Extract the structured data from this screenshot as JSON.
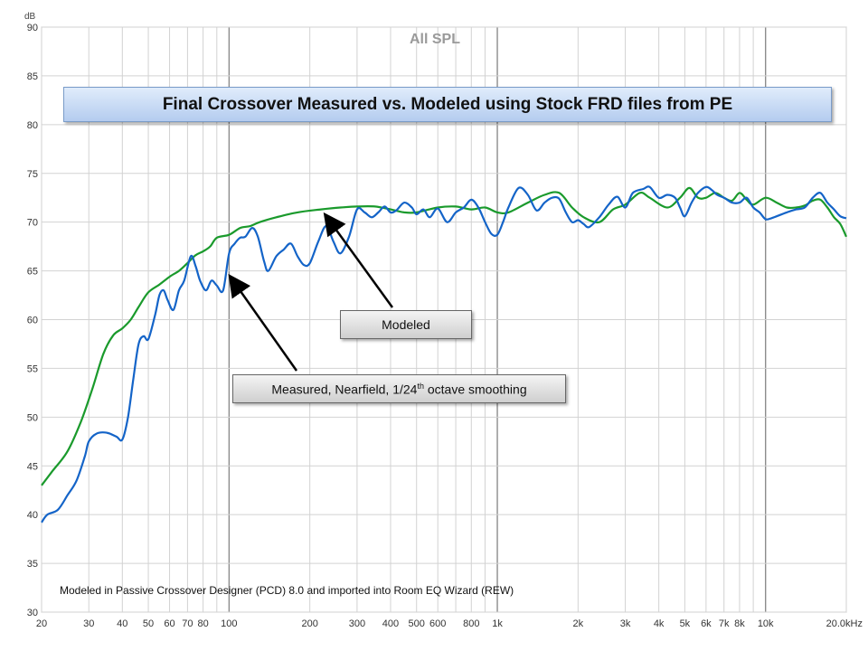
{
  "chart_data": {
    "type": "line",
    "title": "Final Crossover Measured vs. Modeled using Stock FRD files from PE",
    "watermark_title": "All SPL",
    "ylabel": "dB",
    "xscale": "log",
    "xlim": [
      20,
      20000
    ],
    "ylim": [
      30,
      90
    ],
    "grid": true,
    "y_ticks": [
      30,
      35,
      40,
      45,
      50,
      55,
      60,
      65,
      70,
      75,
      80,
      85,
      90
    ],
    "x_ticks": [
      {
        "value": 20,
        "label": "20"
      },
      {
        "value": 30,
        "label": "30"
      },
      {
        "value": 40,
        "label": "40"
      },
      {
        "value": 50,
        "label": "50"
      },
      {
        "value": 60,
        "label": "60"
      },
      {
        "value": 70,
        "label": "70"
      },
      {
        "value": 80,
        "label": "80"
      },
      {
        "value": 100,
        "label": "100"
      },
      {
        "value": 200,
        "label": "200"
      },
      {
        "value": 300,
        "label": "300"
      },
      {
        "value": 400,
        "label": "400"
      },
      {
        "value": 500,
        "label": "500"
      },
      {
        "value": 600,
        "label": "600"
      },
      {
        "value": 800,
        "label": "800"
      },
      {
        "value": 1000,
        "label": "1k"
      },
      {
        "value": 2000,
        "label": "2k"
      },
      {
        "value": 3000,
        "label": "3k"
      },
      {
        "value": 4000,
        "label": "4k"
      },
      {
        "value": 5000,
        "label": "5k"
      },
      {
        "value": 6000,
        "label": "6k"
      },
      {
        "value": 7000,
        "label": "7k"
      },
      {
        "value": 8000,
        "label": "8k"
      },
      {
        "value": 10000,
        "label": "10k"
      },
      {
        "value": 20000,
        "label": "20.0kHz"
      }
    ],
    "series": [
      {
        "color": "#1a9a2c",
        "points": [
          [
            20,
            43
          ],
          [
            22,
            44.5
          ],
          [
            25,
            46.5
          ],
          [
            28,
            49.5
          ],
          [
            31,
            53
          ],
          [
            34,
            56.5
          ],
          [
            37,
            58.4
          ],
          [
            40,
            59.1
          ],
          [
            43,
            60
          ],
          [
            46,
            61.3
          ],
          [
            50,
            62.8
          ],
          [
            55,
            63.6
          ],
          [
            60,
            64.4
          ],
          [
            65,
            65
          ],
          [
            70,
            65.8
          ],
          [
            75,
            66.6
          ],
          [
            80,
            67
          ],
          [
            85,
            67.5
          ],
          [
            90,
            68.4
          ],
          [
            100,
            68.7
          ],
          [
            110,
            69.4
          ],
          [
            120,
            69.6
          ],
          [
            130,
            70
          ],
          [
            150,
            70.5
          ],
          [
            180,
            71
          ],
          [
            220,
            71.3
          ],
          [
            260,
            71.5
          ],
          [
            300,
            71.6
          ],
          [
            350,
            71.6
          ],
          [
            400,
            71.3
          ],
          [
            450,
            71
          ],
          [
            500,
            71
          ],
          [
            600,
            71.5
          ],
          [
            700,
            71.6
          ],
          [
            800,
            71.3
          ],
          [
            900,
            71.5
          ],
          [
            1000,
            71
          ],
          [
            1100,
            71
          ],
          [
            1300,
            72
          ],
          [
            1500,
            72.8
          ],
          [
            1700,
            73
          ],
          [
            1900,
            71.5
          ],
          [
            2100,
            70.5
          ],
          [
            2400,
            70
          ],
          [
            2700,
            71.3
          ],
          [
            3000,
            71.8
          ],
          [
            3400,
            73
          ],
          [
            3700,
            72.5
          ],
          [
            4300,
            71.5
          ],
          [
            4800,
            72.5
          ],
          [
            5200,
            73.5
          ],
          [
            5600,
            72.5
          ],
          [
            6000,
            72.5
          ],
          [
            6500,
            73
          ],
          [
            7000,
            72.5
          ],
          [
            7500,
            72.2
          ],
          [
            8000,
            73
          ],
          [
            8500,
            72.3
          ],
          [
            9000,
            71.8
          ],
          [
            10000,
            72.5
          ],
          [
            11000,
            72
          ],
          [
            12000,
            71.5
          ],
          [
            13000,
            71.5
          ],
          [
            14000,
            71.7
          ],
          [
            15000,
            72.2
          ],
          [
            16000,
            72.3
          ],
          [
            17000,
            71.5
          ],
          [
            18000,
            70.5
          ],
          [
            19000,
            69.8
          ],
          [
            20000,
            68.5
          ]
        ]
      },
      {
        "color": "#1464c8",
        "points": [
          [
            20,
            39.2
          ],
          [
            21,
            40
          ],
          [
            23,
            40.5
          ],
          [
            25,
            42
          ],
          [
            27,
            43.5
          ],
          [
            29,
            46
          ],
          [
            30,
            47.5
          ],
          [
            32,
            48.3
          ],
          [
            35,
            48.4
          ],
          [
            38,
            48
          ],
          [
            40,
            47.7
          ],
          [
            42,
            50
          ],
          [
            44,
            54
          ],
          [
            46,
            57.5
          ],
          [
            48,
            58.3
          ],
          [
            50,
            58
          ],
          [
            53,
            60.5
          ],
          [
            55,
            62.5
          ],
          [
            57,
            63
          ],
          [
            59,
            62
          ],
          [
            62,
            61
          ],
          [
            65,
            63
          ],
          [
            68,
            64
          ],
          [
            72,
            66.5
          ],
          [
            75,
            65.5
          ],
          [
            78,
            64
          ],
          [
            82,
            63
          ],
          [
            86,
            64
          ],
          [
            90,
            63.5
          ],
          [
            95,
            63
          ],
          [
            100,
            66.8
          ],
          [
            105,
            67.8
          ],
          [
            110,
            68.4
          ],
          [
            115,
            68.5
          ],
          [
            122,
            69.4
          ],
          [
            128,
            68.5
          ],
          [
            135,
            66
          ],
          [
            140,
            65
          ],
          [
            150,
            66.5
          ],
          [
            160,
            67.2
          ],
          [
            170,
            67.8
          ],
          [
            180,
            66.5
          ],
          [
            190,
            65.6
          ],
          [
            200,
            65.8
          ],
          [
            215,
            68
          ],
          [
            230,
            69.6
          ],
          [
            245,
            68
          ],
          [
            260,
            66.8
          ],
          [
            280,
            68.5
          ],
          [
            300,
            71.3
          ],
          [
            320,
            71
          ],
          [
            340,
            70.5
          ],
          [
            360,
            71
          ],
          [
            380,
            71.6
          ],
          [
            400,
            71
          ],
          [
            420,
            71.2
          ],
          [
            450,
            72
          ],
          [
            480,
            71.5
          ],
          [
            500,
            70.8
          ],
          [
            530,
            71.3
          ],
          [
            560,
            70.5
          ],
          [
            600,
            71.4
          ],
          [
            650,
            70
          ],
          [
            700,
            71
          ],
          [
            750,
            71.5
          ],
          [
            800,
            72.3
          ],
          [
            850,
            71.5
          ],
          [
            900,
            70
          ],
          [
            950,
            68.8
          ],
          [
            1000,
            68.7
          ],
          [
            1050,
            70
          ],
          [
            1100,
            71.5
          ],
          [
            1200,
            73.5
          ],
          [
            1300,
            72.8
          ],
          [
            1400,
            71.2
          ],
          [
            1500,
            72
          ],
          [
            1600,
            72.5
          ],
          [
            1700,
            72.4
          ],
          [
            1800,
            71
          ],
          [
            1900,
            70
          ],
          [
            2000,
            70.2
          ],
          [
            2100,
            69.8
          ],
          [
            2200,
            69.5
          ],
          [
            2400,
            70.5
          ],
          [
            2600,
            71.8
          ],
          [
            2800,
            72.6
          ],
          [
            3000,
            71.5
          ],
          [
            3200,
            73
          ],
          [
            3500,
            73.4
          ],
          [
            3700,
            73.6
          ],
          [
            4000,
            72.5
          ],
          [
            4300,
            72.8
          ],
          [
            4600,
            72.5
          ],
          [
            4800,
            71.5
          ],
          [
            5000,
            70.6
          ],
          [
            5300,
            72
          ],
          [
            5600,
            73
          ],
          [
            6000,
            73.6
          ],
          [
            6300,
            73.3
          ],
          [
            6600,
            72.8
          ],
          [
            7000,
            72.5
          ],
          [
            7500,
            72
          ],
          [
            8000,
            72
          ],
          [
            8500,
            72.5
          ],
          [
            9000,
            71.5
          ],
          [
            9500,
            71
          ],
          [
            10000,
            70.3
          ],
          [
            10500,
            70.4
          ],
          [
            11000,
            70.6
          ],
          [
            12000,
            71
          ],
          [
            13000,
            71.3
          ],
          [
            14000,
            71.5
          ],
          [
            15000,
            72.5
          ],
          [
            16000,
            73
          ],
          [
            17000,
            72
          ],
          [
            18000,
            71.3
          ],
          [
            19000,
            70.6
          ],
          [
            20000,
            70.4
          ]
        ]
      }
    ],
    "annotations": [
      {
        "label": "Modeled",
        "arrow_from": [
          1.0,
          0
        ],
        "arrow_to": [
          230,
          71
        ]
      },
      {
        "label_main": "Measured, Nearfield, 1/24",
        "label_sup": "th",
        "label_tail": " octave smoothing",
        "arrow_to": [
          100,
          64.5
        ]
      }
    ],
    "footnote": "Modeled in Passive Crossover  Designer (PCD) 8.0 and imported into Room EQ Wizard (REW)"
  }
}
